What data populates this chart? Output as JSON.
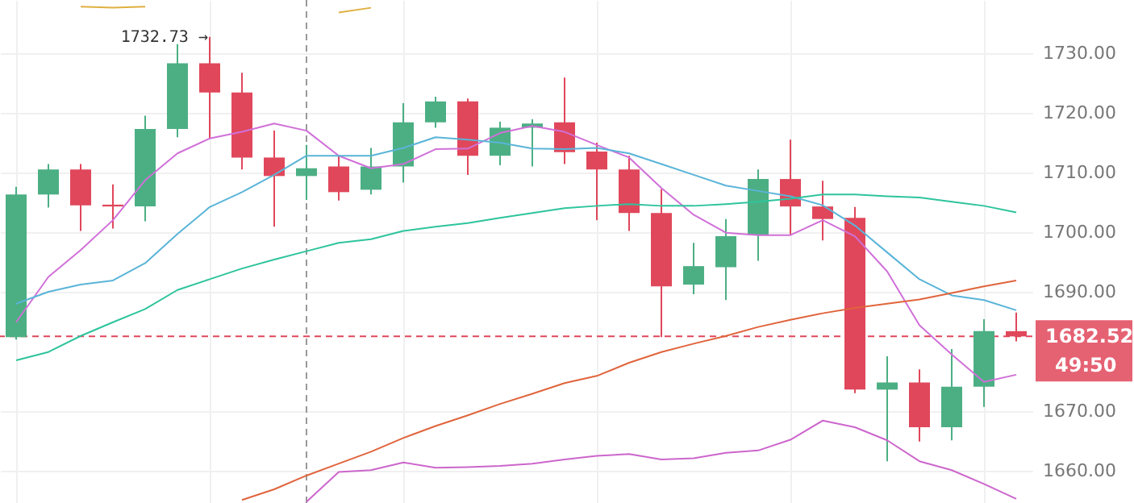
{
  "chart_data": {
    "type": "candlestick",
    "categories": [
      null,
      null,
      null,
      null,
      null,
      null,
      null,
      null,
      null,
      null,
      null,
      null,
      null,
      null,
      null,
      null,
      null,
      null,
      null,
      null,
      null,
      null,
      null,
      null,
      null,
      null,
      null,
      null,
      null,
      null,
      null,
      null
    ],
    "ohlc": [
      [
        1682.4,
        1707.6,
        1682.0,
        1706.3
      ],
      [
        1706.3,
        1711.4,
        1704.1,
        1710.5
      ],
      [
        1710.5,
        1711.4,
        1700.2,
        1704.5
      ],
      [
        1704.6,
        1708.0,
        1700.6,
        1704.3
      ],
      [
        1704.3,
        1719.5,
        1701.8,
        1717.3
      ],
      [
        1717.3,
        1731.5,
        1715.9,
        1728.3
      ],
      [
        1728.3,
        1732.73,
        1715.7,
        1723.4
      ],
      [
        1723.4,
        1726.7,
        1710.5,
        1712.5
      ],
      [
        1712.5,
        1717.0,
        1700.9,
        1709.4
      ],
      [
        1709.4,
        1714.6,
        1705.4,
        1710.7
      ],
      [
        1711.0,
        1712.8,
        1705.3,
        1706.7
      ],
      [
        1707.1,
        1714.1,
        1706.3,
        1711.0
      ],
      [
        1711.0,
        1721.6,
        1708.3,
        1718.4
      ],
      [
        1718.4,
        1722.7,
        1717.5,
        1721.9
      ],
      [
        1721.9,
        1722.4,
        1709.6,
        1712.8
      ],
      [
        1712.8,
        1718.5,
        1711.2,
        1717.5
      ],
      [
        1717.5,
        1718.9,
        1711.0,
        1718.2
      ],
      [
        1718.4,
        1725.9,
        1711.4,
        1713.4
      ],
      [
        1713.5,
        1715.0,
        1702.0,
        1710.5
      ],
      [
        1710.5,
        1712.8,
        1700.2,
        1703.2
      ],
      [
        1703.2,
        1707.2,
        1682.4,
        1690.9
      ],
      [
        1691.2,
        1698.2,
        1689.6,
        1694.3
      ],
      [
        1694.1,
        1702.2,
        1688.6,
        1699.3
      ],
      [
        1699.5,
        1710.5,
        1695.2,
        1708.9
      ],
      [
        1708.9,
        1715.5,
        1699.5,
        1704.3
      ],
      [
        1704.3,
        1708.6,
        1698.6,
        1702.2
      ],
      [
        1702.4,
        1704.2,
        1673.0,
        1673.6
      ],
      [
        1673.6,
        1679.2,
        1661.6,
        1674.8
      ],
      [
        1674.8,
        1677.0,
        1664.9,
        1667.3
      ],
      [
        1667.3,
        1680.4,
        1665.1,
        1674.1
      ],
      [
        1674.1,
        1685.4,
        1670.7,
        1683.4
      ],
      [
        1683.4,
        1686.5,
        1681.7,
        1682.52
      ]
    ],
    "colors": [
      "#4caf84",
      "#4caf84",
      "#e0475b",
      "#e0475b",
      "#4caf84",
      "#4caf84",
      "#e0475b",
      "#e0475b",
      "#e0475b",
      "#4caf84",
      "#e0475b",
      "#4caf84",
      "#4caf84",
      "#4caf84",
      "#e0475b",
      "#4caf84",
      "#4caf84",
      "#e0475b",
      "#e0475b",
      "#e0475b",
      "#e0475b",
      "#4caf84",
      "#4caf84",
      "#4caf84",
      "#e0475b",
      "#e0475b",
      "#e0475b",
      "#4caf84",
      "#e0475b",
      "#4caf84",
      "#4caf84",
      "#e0475b"
    ],
    "series": [
      {
        "type": "line",
        "color": "#d070d8",
        "values": [
          1684.9,
          1692.5,
          1697.0,
          1702.0,
          1708.7,
          1713.2,
          1715.7,
          1716.8,
          1718.2,
          1717.0,
          1712.8,
          1710.7,
          1711.4,
          1713.9,
          1714.0,
          1716.6,
          1717.8,
          1716.8,
          1714.6,
          1712.5,
          1707.4,
          1702.9,
          1699.9,
          1699.5,
          1699.5,
          1702.0,
          1699.3,
          1693.4,
          1684.4,
          1679.5,
          1674.9,
          1676.1
        ]
      },
      {
        "type": "line",
        "color": "#5ab4d8",
        "values": [
          1688.0,
          1690.0,
          1691.2,
          1691.9,
          1694.8,
          1699.7,
          1704.2,
          1706.7,
          1709.6,
          1712.8,
          1712.8,
          1712.8,
          1714.1,
          1715.9,
          1715.5,
          1715.0,
          1714.0,
          1713.9,
          1714.1,
          1713.2,
          1711.4,
          1709.6,
          1707.8,
          1706.9,
          1706.0,
          1704.5,
          1701.1,
          1696.6,
          1692.1,
          1689.4,
          1688.6,
          1686.9
        ]
      },
      {
        "type": "line",
        "color": "#2ec49c",
        "values": [
          1678.5,
          1679.9,
          1682.6,
          1684.9,
          1687.1,
          1690.3,
          1692.1,
          1693.9,
          1695.4,
          1696.8,
          1698.2,
          1698.8,
          1700.2,
          1700.9,
          1701.5,
          1702.4,
          1703.2,
          1704.0,
          1704.4,
          1704.7,
          1704.4,
          1704.4,
          1704.7,
          1705.1,
          1705.6,
          1706.3,
          1706.3,
          1706.0,
          1705.8,
          1705.1,
          1704.4,
          1703.3
        ]
      },
      {
        "type": "line",
        "color": "#e0643c",
        "values": [
          null,
          null,
          null,
          null,
          null,
          null,
          null,
          1655.1,
          1656.9,
          1659.2,
          1661.2,
          1663.2,
          1665.5,
          1667.5,
          1669.3,
          1671.2,
          1672.9,
          1674.7,
          1675.9,
          1678.1,
          1679.9,
          1681.3,
          1682.6,
          1684.1,
          1685.3,
          1686.4,
          1687.3,
          1688.0,
          1688.7,
          1689.8,
          1690.9,
          1691.9
        ]
      },
      {
        "type": "line",
        "color": "#cc66cc",
        "values": [
          null,
          null,
          null,
          null,
          null,
          null,
          null,
          null,
          null,
          1654.8,
          1659.8,
          1660.1,
          1661.4,
          1660.5,
          1660.6,
          1660.8,
          1661.2,
          1661.9,
          1662.5,
          1662.8,
          1661.9,
          1662.1,
          1663.0,
          1663.4,
          1665.2,
          1668.4,
          1667.3,
          1665.1,
          1661.6,
          1660.1,
          1657.8,
          1655.3
        ]
      },
      {
        "type": "line",
        "color": "#e0b040",
        "values": [
          null,
          null,
          1737.8,
          1737.6,
          1737.8,
          null,
          null,
          null,
          null,
          null,
          1736.8,
          1737.6,
          null,
          null,
          null,
          null,
          null,
          null,
          null,
          null,
          null,
          null,
          null,
          null,
          null,
          null,
          null,
          null,
          null,
          null,
          null,
          null
        ]
      }
    ],
    "ylim": [
      1654.6,
      1738.9
    ],
    "yticks": [
      {
        "value": 1660,
        "label": "1660.00"
      },
      {
        "value": 1670,
        "label": "1670.00"
      },
      {
        "value": 1690,
        "label": "1690.00"
      },
      {
        "value": 1700,
        "label": "1700.00"
      },
      {
        "value": 1710,
        "label": "1710.00"
      },
      {
        "value": 1720,
        "label": "1720.00"
      },
      {
        "value": 1730,
        "label": "1730.00"
      }
    ],
    "grid": true,
    "ref_lines": [
      {
        "axis": "y",
        "value": 1682.52,
        "label": "1682.52",
        "color": "#e0475b",
        "line_style": "dashed"
      }
    ],
    "annotations": [
      "1732.73 →",
      "49:50"
    ]
  }
}
